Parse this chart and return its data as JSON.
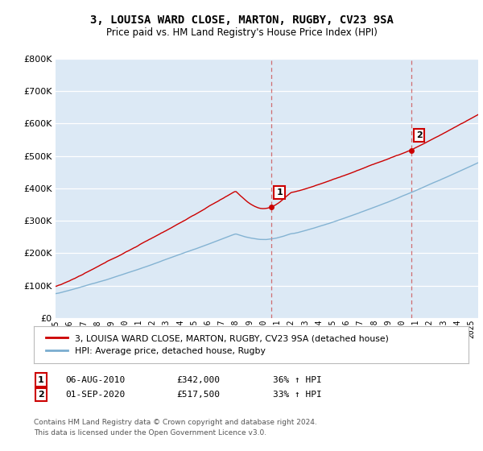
{
  "title": "3, LOUISA WARD CLOSE, MARTON, RUGBY, CV23 9SA",
  "subtitle": "Price paid vs. HM Land Registry's House Price Index (HPI)",
  "property_label": "3, LOUISA WARD CLOSE, MARTON, RUGBY, CV23 9SA (detached house)",
  "hpi_label": "HPI: Average price, detached house, Rugby",
  "sale1_date": "06-AUG-2010",
  "sale1_price": "£342,000",
  "sale1_hpi": "36% ↑ HPI",
  "sale2_date": "01-SEP-2020",
  "sale2_price": "£517,500",
  "sale2_hpi": "33% ↑ HPI",
  "footnote": "Contains HM Land Registry data © Crown copyright and database right 2024.\nThis data is licensed under the Open Government Licence v3.0.",
  "property_color": "#cc0000",
  "hpi_color": "#7aadcf",
  "sale1_x": 2010.58,
  "sale1_y": 342000,
  "sale2_x": 2020.67,
  "sale2_y": 517500,
  "ylim": [
    0,
    800000
  ],
  "xlim_start": 1995.0,
  "xlim_end": 2025.5,
  "bg_color": "#dce9f5"
}
